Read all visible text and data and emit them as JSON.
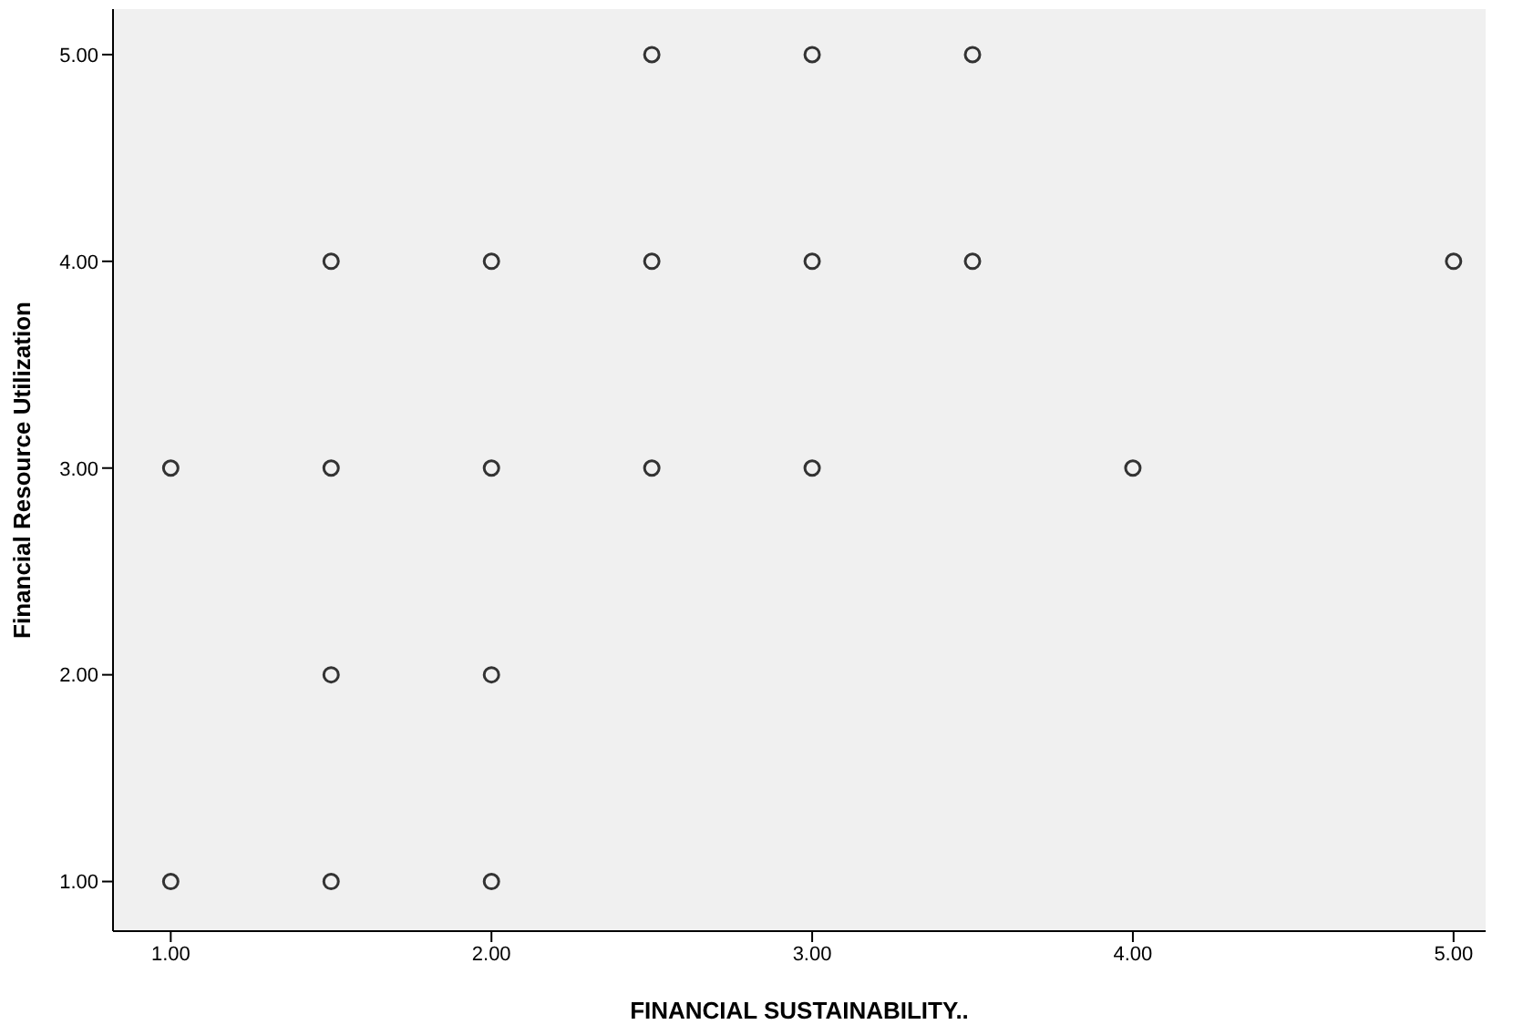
{
  "chart_data": {
    "type": "scatter",
    "xlabel": "FINANCIAL SUSTAINABILITY..",
    "ylabel": "Financial Resource Utilization",
    "x": [
      2.5,
      3,
      3.5,
      1.5,
      2,
      2.5,
      3,
      3.5,
      5,
      1,
      1.5,
      2,
      2.5,
      3,
      4,
      1.5,
      2,
      1,
      1.5,
      2
    ],
    "series": [
      {
        "color": "#333333",
        "values": [
          5,
          5,
          5,
          4,
          4,
          4,
          4,
          4,
          4,
          3,
          3,
          3,
          3,
          3,
          3,
          2,
          2,
          1,
          1,
          1
        ]
      }
    ],
    "xlim": [
      0.82,
      5.1
    ],
    "ylim": [
      0.76,
      5.22
    ],
    "xticks": [
      {
        "value": 1,
        "label": "1.00"
      },
      {
        "value": 2,
        "label": "2.00"
      },
      {
        "value": 3,
        "label": "3.00"
      },
      {
        "value": 4,
        "label": "4.00"
      },
      {
        "value": 5,
        "label": "5.00"
      }
    ],
    "yticks": [
      {
        "value": 1,
        "label": "1.00"
      },
      {
        "value": 2,
        "label": "2.00"
      },
      {
        "value": 3,
        "label": "3.00"
      },
      {
        "value": 4,
        "label": "4.00"
      },
      {
        "value": 5,
        "label": "5.00"
      }
    ],
    "grid": false,
    "legend": false,
    "marker": "circle"
  }
}
